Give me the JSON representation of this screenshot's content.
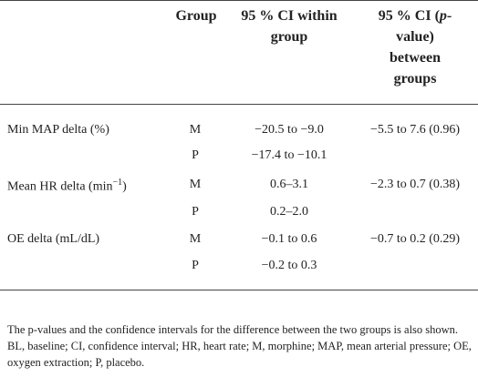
{
  "header": [
    null,
    "Group",
    "95 % CI within group",
    {
      "before": "95 % CI (",
      "italic": "p",
      "after": "-value) between groups"
    }
  ],
  "rows": [
    {
      "label": "Min MAP delta (%)",
      "group": "M",
      "within": "−20.5 to −9.0",
      "between": "−5.5 to 7.6 (0.96)"
    },
    {
      "group": "P",
      "within": "−17.4 to −10.1"
    },
    {
      "label": {
        "before": "Mean HR delta (min",
        "sup": "−1",
        "after": ")"
      },
      "group": "M",
      "within": "0.6–3.1",
      "between": "−2.3 to 0.7 (0.38)"
    },
    {
      "group": "P",
      "within": "0.2–2.0"
    },
    {
      "label": "OE delta (mL/dL)",
      "group": "M",
      "within": "−0.1 to 0.6",
      "between": "−0.7 to 0.2 (0.29)"
    },
    {
      "group": "P",
      "within": "−0.2 to 0.3"
    }
  ],
  "footnote": "The p-values and the confidence intervals for the difference between the two groups is also shown. BL, baseline; CI, confidence interval; HR, heart rate; M, morphine; MAP, mean arterial pressure; OE, oxygen extraction; P, placebo."
}
